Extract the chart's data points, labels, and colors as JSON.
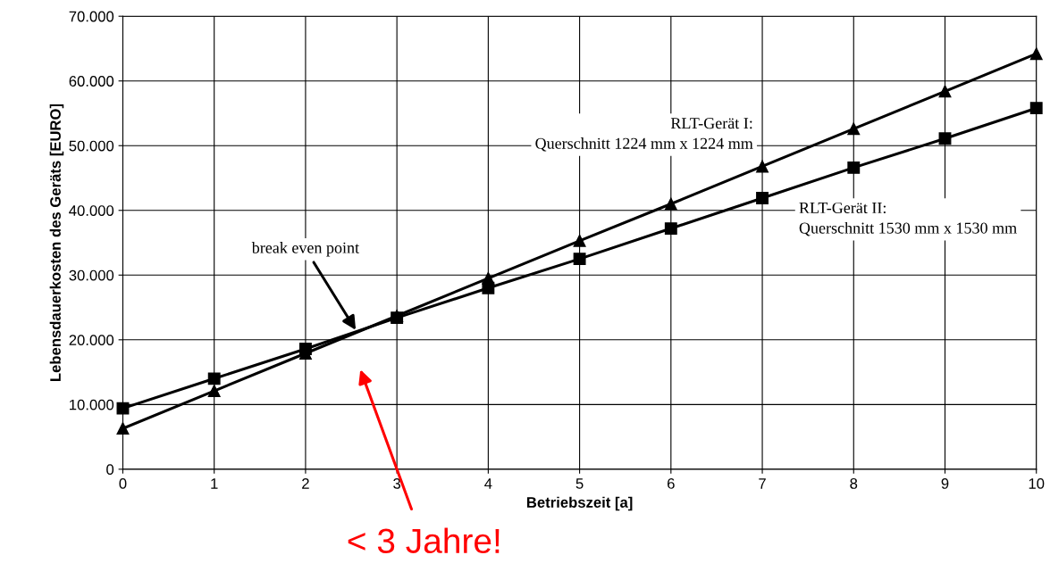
{
  "chart_data": {
    "type": "line",
    "xlabel": "Betriebszeit [a]",
    "ylabel": "Lebensdauerkosten des Geräts [EURO]",
    "x": [
      0,
      1,
      2,
      3,
      4,
      5,
      6,
      7,
      8,
      9,
      10
    ],
    "series": [
      {
        "name": "RLT-Gerät I:\nQuerschnitt 1224 mm x 1224 mm",
        "color": "#000000",
        "marker": "triangle",
        "values": [
          6300,
          12100,
          17900,
          23700,
          29500,
          35300,
          41000,
          46800,
          52600,
          58400,
          64200
        ]
      },
      {
        "name": "RLT-Gerät II:\nQuerschnitt 1530 mm x 1530 mm",
        "color": "#000000",
        "marker": "square",
        "values": [
          9400,
          14000,
          18600,
          23400,
          28000,
          32500,
          37200,
          41900,
          46600,
          51100,
          55800
        ]
      }
    ],
    "xlim": [
      0,
      10
    ],
    "xticks": [
      0,
      1,
      2,
      3,
      4,
      5,
      6,
      7,
      8,
      9,
      10
    ],
    "ylim": [
      0,
      70000
    ],
    "yticks": [
      {
        "value": 0,
        "label": "0"
      },
      {
        "value": 10000,
        "label": "10.000"
      },
      {
        "value": 20000,
        "label": "20.000"
      },
      {
        "value": 30000,
        "label": "30.000"
      },
      {
        "value": 40000,
        "label": "40.000"
      },
      {
        "value": 50000,
        "label": "50.000"
      },
      {
        "value": 60000,
        "label": "60.000"
      },
      {
        "value": 70000,
        "label": "70.000"
      }
    ],
    "grid": true,
    "legend": false,
    "line_style": "solid",
    "annotations": [
      {
        "text": "break even point",
        "x": 2.55,
        "y": 21500
      },
      "< 3 Jahre!"
    ]
  }
}
